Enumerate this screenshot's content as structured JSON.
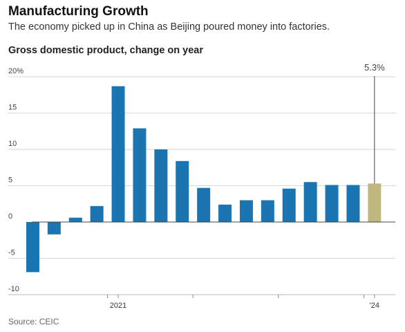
{
  "header": {
    "title": "Manufacturing Growth",
    "subtitle": "The economy picked up in China as Beijing poured money into factories.",
    "chart_label": "Gross domestic product, change on year",
    "source": "Source: CEIC"
  },
  "colors": {
    "bar": "#1a75b0",
    "highlight": "#bfb77d",
    "grid": "#d6d6d6",
    "zero_line": "#444444"
  },
  "chart_data": {
    "type": "bar",
    "title": "Gross domestic product, change on year",
    "ylim": [
      -10,
      20
    ],
    "yticks": [
      {
        "value": 20,
        "label": "20%"
      },
      {
        "value": 15,
        "label": "15"
      },
      {
        "value": 10,
        "label": "10"
      },
      {
        "value": 5,
        "label": "5"
      },
      {
        "value": 0,
        "label": "0"
      },
      {
        "value": -5,
        "label": "-5"
      },
      {
        "value": -10,
        "label": "-10"
      }
    ],
    "values": [
      -6.9,
      -1.7,
      0.6,
      2.2,
      18.7,
      12.9,
      10.0,
      8.4,
      4.7,
      2.4,
      3.0,
      3.0,
      4.6,
      5.5,
      5.1,
      5.1,
      5.3
    ],
    "highlight_index": 16,
    "x_tick_marks_after_index": [
      3,
      7,
      11,
      15
    ],
    "x_labels": [
      {
        "index": 4,
        "label": "2021"
      },
      {
        "index": 16,
        "label": "'24"
      }
    ],
    "annotation": {
      "index": 16,
      "label": "5.3%"
    },
    "grid": true
  }
}
